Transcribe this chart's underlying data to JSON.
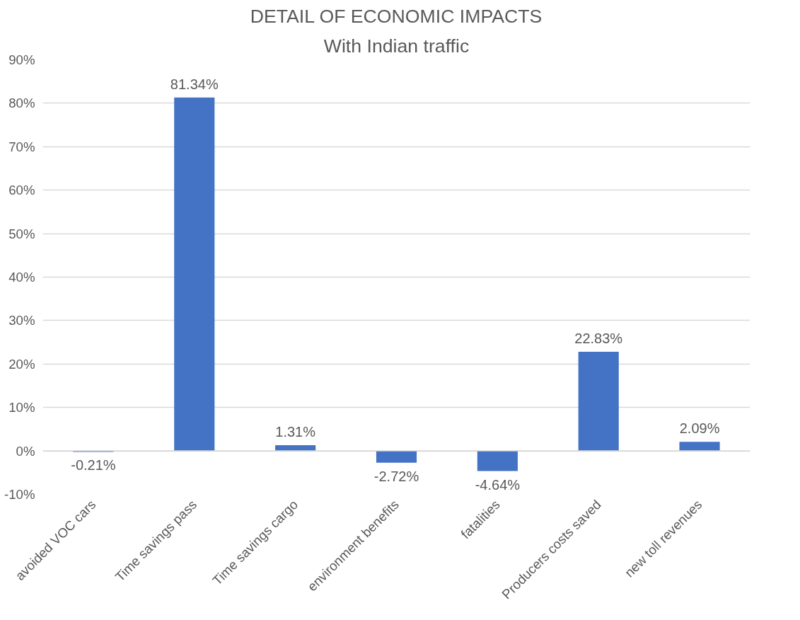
{
  "chart_data": {
    "type": "bar",
    "title": "DETAIL OF ECONOMIC IMPACTS",
    "subtitle": "With Indian traffic",
    "categories": [
      "avoided VOC cars",
      "Time savings pass",
      "Time savings cargo",
      "environment benefits",
      "fatalities",
      "Producers costs saved",
      "new toll revenues"
    ],
    "values": [
      -0.21,
      81.34,
      1.31,
      -2.72,
      -4.64,
      22.83,
      2.09
    ],
    "value_labels": [
      "-0.21%",
      "81.34%",
      "1.31%",
      "-2.72%",
      "-4.64%",
      "22.83%",
      "2.09%"
    ],
    "color": "#4472c4",
    "ylim": [
      -10,
      90
    ],
    "yticks": [
      {
        "value": -10,
        "label": "-10%"
      },
      {
        "value": 0,
        "label": "0%"
      },
      {
        "value": 10,
        "label": "10%"
      },
      {
        "value": 20,
        "label": "20%"
      },
      {
        "value": 30,
        "label": "30%"
      },
      {
        "value": 40,
        "label": "40%"
      },
      {
        "value": 50,
        "label": "50%"
      },
      {
        "value": 60,
        "label": "60%"
      },
      {
        "value": 70,
        "label": "70%"
      },
      {
        "value": 80,
        "label": "80%"
      },
      {
        "value": 90,
        "label": "90%"
      }
    ],
    "grid": "y"
  }
}
